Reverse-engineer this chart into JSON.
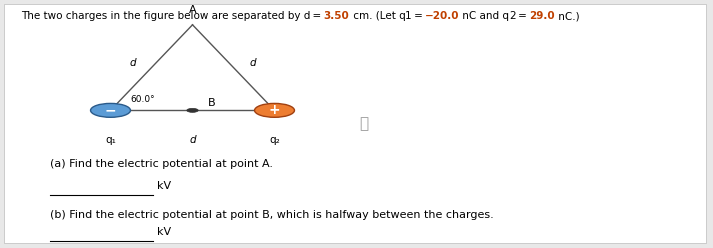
{
  "background_color": "#e8e8e8",
  "panel_color": "#ffffff",
  "q1_color": "#5b9bd5",
  "q1_edge_color": "#2a5a8a",
  "q2_color": "#ed7d31",
  "q2_edge_color": "#a04010",
  "q1_sign": "−",
  "q2_sign": "+",
  "q1_label": "q₁",
  "q2_label": "q₂",
  "A_label": "A",
  "B_label": "B",
  "angle_label": "60.0°",
  "d_label": "d",
  "title_normal1": "The two charges in the figure below are separated by d = ",
  "title_colored1": "3.50",
  "title_normal2": " cm. (Let q",
  "title_sub1": "1",
  "title_normal3": " = ",
  "title_colored2": "−20.0",
  "title_normal4": " nC and q",
  "title_sub2": "2",
  "title_normal5": " = ",
  "title_colored3": "29.0",
  "title_normal6": " nC.)",
  "colored_text_color": "#c04000",
  "question_a": "(a) Find the electric potential at point A.",
  "question_b": "(b) Find the electric potential at point B, which is halfway between the charges.",
  "unit": "kV",
  "info_symbol": "ⓘ",
  "q1x": 0.155,
  "q1y": 0.555,
  "q2x": 0.385,
  "q2y": 0.555,
  "Ay": 0.9,
  "circle_r": 0.028,
  "B_dot_r": 0.008,
  "line_color": "#555555",
  "line_lw": 1.0,
  "fs_title": 7.5,
  "fs_label": 8.0,
  "fs_small": 7.5,
  "fs_q": 8.0
}
